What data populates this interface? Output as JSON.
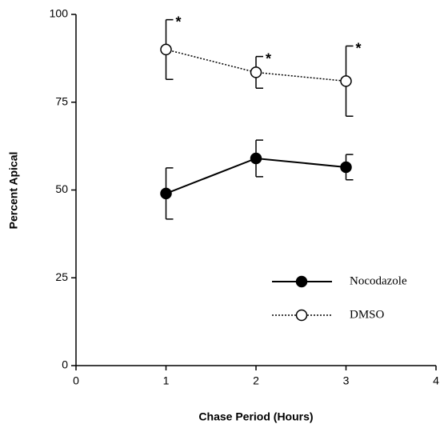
{
  "chart_data": {
    "type": "line",
    "x_label": "Chase Period (Hours)",
    "y_label": "Percent Apical",
    "x": [
      1,
      2,
      3
    ],
    "series": [
      {
        "name": "Nocodazole",
        "color": "#000000",
        "linestyle": "solid",
        "marker_fill": "filled",
        "values": [
          49,
          59,
          56.5
        ],
        "errors": [
          7.3,
          5.2,
          3.6
        ]
      },
      {
        "name": "DMSO",
        "color": "#000000",
        "linestyle": "dotted",
        "marker_fill": "open",
        "values": [
          90,
          83.5,
          81
        ],
        "errors": [
          8.5,
          4.5,
          10
        ],
        "significance_marks": [
          "*",
          "*",
          "*"
        ]
      }
    ],
    "xlim": [
      0,
      4
    ],
    "xticks": [
      0,
      1,
      2,
      3,
      4
    ],
    "ylim": [
      0,
      100
    ],
    "yticks": [
      0,
      25,
      50,
      75,
      100
    ],
    "grid": false,
    "legend": "lower right"
  }
}
